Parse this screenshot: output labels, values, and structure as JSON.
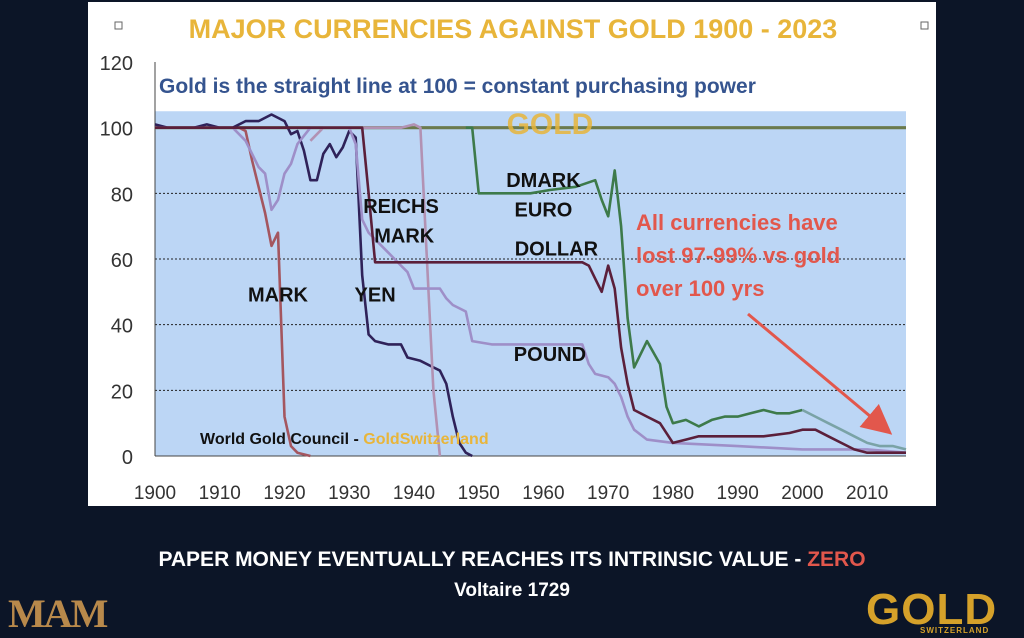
{
  "chart_data": {
    "type": "line",
    "title": "MAJOR CURRENCIES AGAINST GOLD 1900 - 2023",
    "subtitle": "Gold is the straight line at 100 = constant purchasing power",
    "source": "World Gold Council - ",
    "source_brand": "GoldSwitzerland",
    "xlabel": "",
    "ylabel": "",
    "xlim": [
      1900,
      2016
    ],
    "ylim": [
      0,
      120
    ],
    "x_ticks": [
      1900,
      1910,
      1920,
      1930,
      1940,
      1950,
      1960,
      1970,
      1980,
      1990,
      2000,
      2010
    ],
    "y_ticks": [
      0,
      20,
      40,
      60,
      80,
      100,
      120
    ],
    "grid": true,
    "annotation": {
      "lines": [
        "All currencies have",
        "lost 97-99% vs gold",
        "over 100 yrs"
      ],
      "color": "#e2574c"
    },
    "series": [
      {
        "name": "GOLD",
        "color": "#6b7a4d",
        "points": [
          [
            1900,
            100
          ],
          [
            2016,
            100
          ]
        ]
      },
      {
        "name": "MARK",
        "color": "#a4565f",
        "points": [
          [
            1900,
            100
          ],
          [
            1913,
            100
          ],
          [
            1914,
            99
          ],
          [
            1915,
            90
          ],
          [
            1916,
            82
          ],
          [
            1917,
            74
          ],
          [
            1918,
            64
          ],
          [
            1919,
            68
          ],
          [
            1920,
            12
          ],
          [
            1921,
            3
          ],
          [
            1922,
            1
          ],
          [
            1924,
            0
          ]
        ]
      },
      {
        "name": "YEN",
        "color": "#2f2259",
        "points": [
          [
            1900,
            101
          ],
          [
            1902,
            100
          ],
          [
            1904,
            100
          ],
          [
            1906,
            100
          ],
          [
            1908,
            101
          ],
          [
            1910,
            100
          ],
          [
            1912,
            100
          ],
          [
            1914,
            102
          ],
          [
            1916,
            102
          ],
          [
            1918,
            104
          ],
          [
            1920,
            102
          ],
          [
            1921,
            98
          ],
          [
            1922,
            99
          ],
          [
            1923,
            93
          ],
          [
            1924,
            84
          ],
          [
            1925,
            84
          ],
          [
            1926,
            92
          ],
          [
            1927,
            95
          ],
          [
            1928,
            91
          ],
          [
            1929,
            94
          ],
          [
            1930,
            99
          ],
          [
            1931,
            97
          ],
          [
            1932,
            55
          ],
          [
            1933,
            37
          ],
          [
            1934,
            35
          ],
          [
            1936,
            34
          ],
          [
            1938,
            34
          ],
          [
            1939,
            30
          ],
          [
            1941,
            29
          ],
          [
            1943,
            27
          ],
          [
            1944,
            26
          ],
          [
            1945,
            22
          ],
          [
            1946,
            12
          ],
          [
            1947,
            4
          ],
          [
            1948,
            1
          ],
          [
            1949,
            0
          ]
        ]
      },
      {
        "name": "REICHS MARK",
        "color": "#b292b3",
        "points": [
          [
            1924,
            96
          ],
          [
            1926,
            100
          ],
          [
            1928,
            100
          ],
          [
            1930,
            100
          ],
          [
            1932,
            100
          ],
          [
            1934,
            100
          ],
          [
            1936,
            100
          ],
          [
            1938,
            100
          ],
          [
            1940,
            101
          ],
          [
            1941,
            100
          ],
          [
            1942,
            60
          ],
          [
            1943,
            20
          ],
          [
            1944,
            0
          ]
        ]
      },
      {
        "name": "POUND",
        "color": "#9e8fc8",
        "points": [
          [
            1900,
            100
          ],
          [
            1912,
            100
          ],
          [
            1914,
            96
          ],
          [
            1916,
            88
          ],
          [
            1917,
            86
          ],
          [
            1918,
            75
          ],
          [
            1919,
            78
          ],
          [
            1920,
            86
          ],
          [
            1921,
            89
          ],
          [
            1922,
            95
          ],
          [
            1924,
            100
          ],
          [
            1926,
            100
          ],
          [
            1928,
            100
          ],
          [
            1930,
            100
          ],
          [
            1931,
            95
          ],
          [
            1932,
            72
          ],
          [
            1933,
            68
          ],
          [
            1934,
            66
          ],
          [
            1936,
            62
          ],
          [
            1938,
            58
          ],
          [
            1939,
            56
          ],
          [
            1940,
            51
          ],
          [
            1944,
            51
          ],
          [
            1945,
            48
          ],
          [
            1946,
            46
          ],
          [
            1948,
            44
          ],
          [
            1949,
            35
          ],
          [
            1952,
            34
          ],
          [
            1960,
            34
          ],
          [
            1966,
            34
          ],
          [
            1967,
            28
          ],
          [
            1968,
            25
          ],
          [
            1970,
            24
          ],
          [
            1971,
            22
          ],
          [
            1972,
            18
          ],
          [
            1973,
            12
          ],
          [
            1974,
            8
          ],
          [
            1976,
            5
          ],
          [
            1980,
            4
          ],
          [
            1990,
            3
          ],
          [
            2000,
            2
          ],
          [
            2010,
            2
          ],
          [
            2016,
            1
          ]
        ]
      },
      {
        "name": "DOLLAR",
        "color": "#5b1f3a",
        "points": [
          [
            1900,
            100
          ],
          [
            1930,
            100
          ],
          [
            1932,
            100
          ],
          [
            1933,
            80
          ],
          [
            1934,
            59
          ],
          [
            1940,
            59
          ],
          [
            1950,
            59
          ],
          [
            1960,
            59
          ],
          [
            1966,
            59
          ],
          [
            1967,
            58
          ],
          [
            1968,
            54
          ],
          [
            1969,
            50
          ],
          [
            1970,
            58
          ],
          [
            1971,
            51
          ],
          [
            1972,
            33
          ],
          [
            1973,
            22
          ],
          [
            1974,
            14
          ],
          [
            1976,
            12
          ],
          [
            1978,
            10
          ],
          [
            1980,
            4
          ],
          [
            1982,
            5
          ],
          [
            1984,
            6
          ],
          [
            1986,
            6
          ],
          [
            1990,
            6
          ],
          [
            1994,
            6
          ],
          [
            1998,
            7
          ],
          [
            2000,
            8
          ],
          [
            2002,
            8
          ],
          [
            2004,
            6
          ],
          [
            2006,
            4
          ],
          [
            2008,
            2
          ],
          [
            2010,
            1
          ],
          [
            2012,
            1
          ],
          [
            2016,
            1
          ]
        ]
      },
      {
        "name": "DMARK",
        "color": "#3d7a4a",
        "points": [
          [
            1948,
            100
          ],
          [
            1949,
            100
          ],
          [
            1950,
            80
          ],
          [
            1954,
            80
          ],
          [
            1958,
            80
          ],
          [
            1961,
            81
          ],
          [
            1965,
            82
          ],
          [
            1968,
            84
          ],
          [
            1969,
            78
          ],
          [
            1970,
            73
          ],
          [
            1971,
            87
          ],
          [
            1972,
            70
          ],
          [
            1973,
            42
          ],
          [
            1974,
            27
          ],
          [
            1976,
            35
          ],
          [
            1978,
            28
          ],
          [
            1979,
            15
          ],
          [
            1980,
            10
          ],
          [
            1982,
            11
          ],
          [
            1984,
            9
          ],
          [
            1986,
            11
          ],
          [
            1988,
            12
          ],
          [
            1990,
            12
          ],
          [
            1992,
            13
          ],
          [
            1994,
            14
          ],
          [
            1996,
            13
          ],
          [
            1998,
            13
          ],
          [
            2000,
            14
          ]
        ]
      },
      {
        "name": "EURO",
        "color": "#7aa3a6",
        "points": [
          [
            2000,
            14
          ],
          [
            2002,
            12
          ],
          [
            2004,
            10
          ],
          [
            2006,
            8
          ],
          [
            2008,
            6
          ],
          [
            2010,
            4
          ],
          [
            2012,
            3
          ],
          [
            2014,
            3
          ],
          [
            2016,
            2
          ]
        ]
      }
    ],
    "labels": [
      {
        "text": "MARK",
        "x": 1919,
        "y": 47
      },
      {
        "text": "YEN",
        "x": 1934,
        "y": 47
      },
      {
        "text": "REICHS",
        "x": 1938,
        "y": 74
      },
      {
        "text": "MARK",
        "x": 1938.5,
        "y": 65
      },
      {
        "text": "DOLLAR",
        "x": 1962,
        "y": 61
      },
      {
        "text": "DMARK",
        "x": 1960,
        "y": 82
      },
      {
        "text": "EURO",
        "x": 1960,
        "y": 73
      },
      {
        "text": "POUND",
        "x": 1961,
        "y": 29
      },
      {
        "text": "GOLD",
        "x": 1961,
        "y": 98
      }
    ],
    "colors": {
      "plot_background": "#bcd6f5",
      "title": "#e8b53a",
      "subtitle": "#35548f",
      "source_brand": "#e8b53a",
      "gold_label": "#e8b53a"
    }
  },
  "caption": {
    "line1": "PAPER MONEY EVENTUALLY REACHES ITS INTRINSIC VALUE - ",
    "line1_highlight": "ZERO",
    "author": "Voltaire 1729"
  },
  "logos": {
    "left": "MAM",
    "right": "GOLD",
    "right_sub": "SWITZERLAND"
  }
}
